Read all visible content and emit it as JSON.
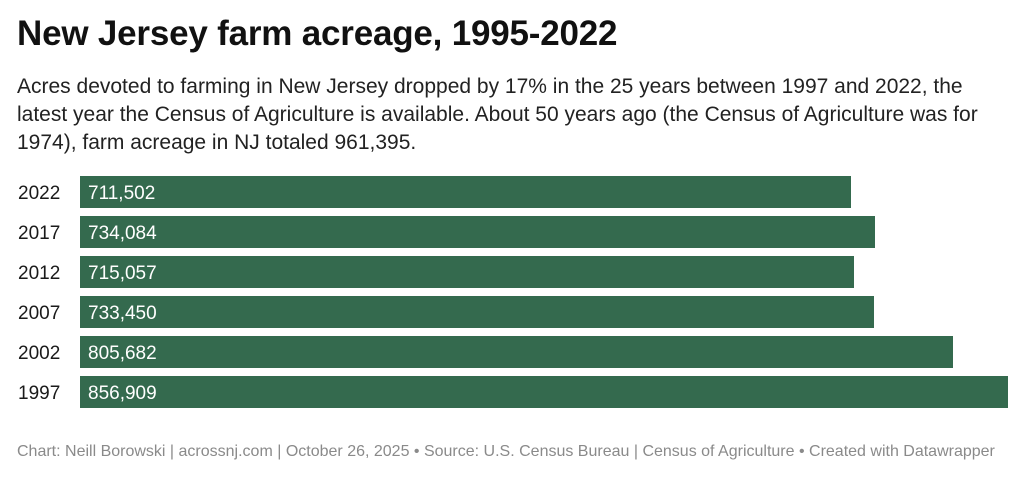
{
  "title": "New Jersey farm acreage, 1995-2022",
  "subtitle": "Acres devoted to farming in New Jersey dropped by 17% in the 25 years between 1997 and 2022, the latest year the Census of Agriculture is available. About 50 years ago (the Census of Agriculture was for 1974), farm acreage in NJ totaled 961,395.",
  "footer": "Chart: Neill Borowski | acrossnj.com | October 26, 2025 • Source: U.S. Census Bureau | Census of Agriculture • Created with Datawrapper",
  "colors": {
    "bar": "#346a4e",
    "bar_label": "#ffffff",
    "category_label": "#1a1a1a"
  },
  "chart_data": {
    "type": "bar",
    "orientation": "horizontal",
    "categories": [
      "2022",
      "2017",
      "2012",
      "2007",
      "2002",
      "1997"
    ],
    "values": [
      711502,
      734084,
      715057,
      733450,
      805682,
      856909
    ],
    "value_labels": [
      "711,502",
      "734,084",
      "715,057",
      "733,450",
      "805,682",
      "856,909"
    ],
    "xlim": [
      0,
      856909
    ],
    "grid": false,
    "legend": "none"
  }
}
